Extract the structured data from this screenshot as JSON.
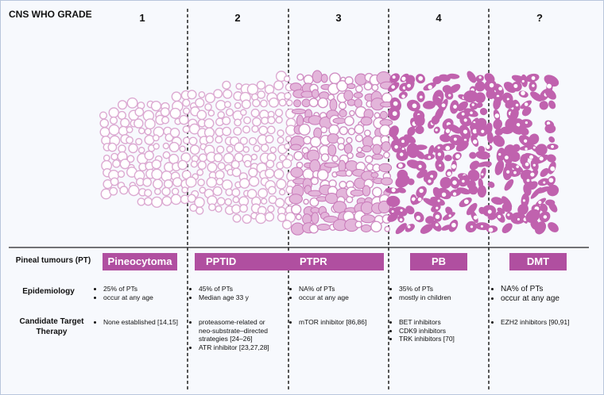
{
  "header": {
    "title": "CNS WHO GRADE",
    "grades": [
      "1",
      "2",
      "3",
      "4",
      "?"
    ]
  },
  "tumours": {
    "label": "Pineal tumours (PT)",
    "names": [
      "Pineocytoma",
      "PPTID",
      "PTPR",
      "PB",
      "DMT"
    ]
  },
  "epidemiology": {
    "label": "Epidemiology",
    "items": [
      [
        "25% of PTs",
        "occur at any age"
      ],
      [
        "45% of PTs",
        "Median age 33 y"
      ],
      [
        "NA% of PTs",
        "occur at any age"
      ],
      [
        "35% of PTs",
        "mostly in children"
      ],
      [
        "NA% of PTs",
        "occur at any age"
      ]
    ]
  },
  "therapy": {
    "label": [
      "Candidate Target",
      "Therapy"
    ],
    "items": [
      [
        "None established [14,15]"
      ],
      [
        "proteasome-related or neo-substrate–directed strategies [24–26]",
        "ATR inhibitor [23,27,28]"
      ],
      [
        "mTOR inhibitor [86,86]"
      ],
      [
        "BET inhibitors",
        "CDK9 inhibitors",
        "TRK inhibitors [70]"
      ],
      [
        "EZH2 inhibitors [90,91]"
      ]
    ]
  }
}
